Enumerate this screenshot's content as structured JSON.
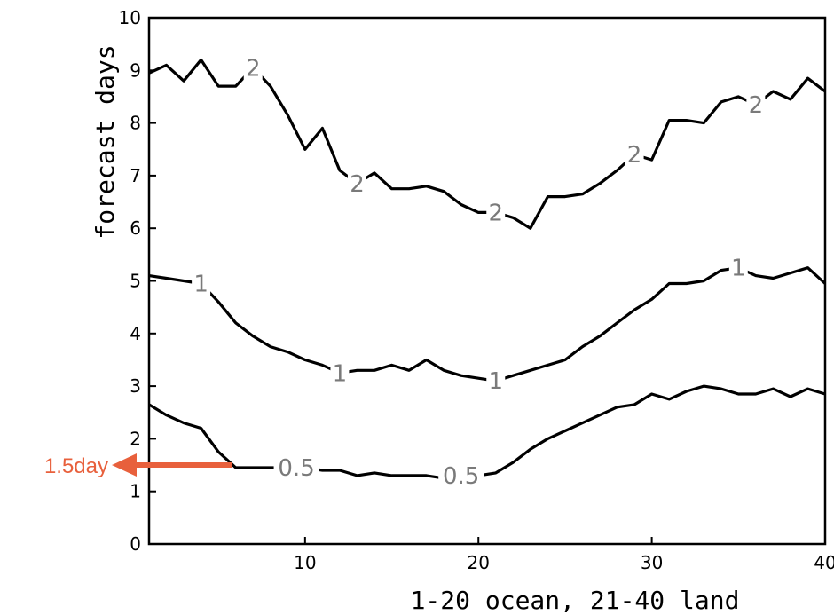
{
  "chart_data": {
    "type": "line",
    "xlabel": "1-20 ocean, 21-40 land",
    "ylabel": "forecast days",
    "xlim": [
      1,
      40
    ],
    "ylim": [
      0,
      10
    ],
    "x_ticks": [
      10,
      20,
      30,
      40
    ],
    "x_tick_labels": [
      "10",
      "20",
      "30",
      "40"
    ],
    "y_ticks": [
      0,
      1,
      2,
      3,
      4,
      5,
      6,
      7,
      8,
      9,
      10
    ],
    "y_tick_labels": [
      "0",
      "1",
      "2",
      "3",
      "4",
      "5",
      "6",
      "7",
      "8",
      "9",
      "10"
    ],
    "grid": false,
    "legend": "none",
    "series": [
      {
        "label": "2",
        "x": [
          1,
          2,
          3,
          4,
          5,
          6,
          7,
          8,
          9,
          10,
          11,
          12,
          13,
          14,
          15,
          16,
          17,
          18,
          19,
          20,
          21,
          22,
          23,
          24,
          25,
          26,
          27,
          28,
          29,
          30,
          31,
          32,
          33,
          34,
          35,
          36,
          37,
          38,
          39,
          40
        ],
        "y": [
          8.95,
          9.1,
          8.8,
          9.2,
          8.7,
          8.7,
          9.05,
          8.7,
          8.15,
          7.5,
          7.9,
          7.1,
          6.85,
          7.05,
          6.75,
          6.75,
          6.8,
          6.7,
          6.45,
          6.3,
          6.3,
          6.2,
          6.0,
          6.6,
          6.6,
          6.65,
          6.85,
          7.1,
          7.4,
          7.3,
          8.05,
          8.05,
          8.0,
          8.4,
          8.5,
          8.35,
          8.6,
          8.45,
          8.85,
          8.6
        ],
        "labels_at": [
          7,
          13,
          21,
          29,
          36
        ]
      },
      {
        "label": "1",
        "x": [
          1,
          2,
          3,
          4,
          5,
          6,
          7,
          8,
          9,
          10,
          11,
          12,
          13,
          14,
          15,
          16,
          17,
          18,
          19,
          20,
          21,
          22,
          23,
          24,
          25,
          26,
          27,
          28,
          29,
          30,
          31,
          32,
          33,
          34,
          35,
          36,
          37,
          38,
          39,
          40
        ],
        "y": [
          5.1,
          5.05,
          5.0,
          4.95,
          4.6,
          4.2,
          3.95,
          3.75,
          3.65,
          3.5,
          3.4,
          3.25,
          3.3,
          3.3,
          3.4,
          3.3,
          3.5,
          3.3,
          3.2,
          3.15,
          3.1,
          3.2,
          3.3,
          3.4,
          3.5,
          3.75,
          3.95,
          4.2,
          4.45,
          4.65,
          4.95,
          4.95,
          5.0,
          5.2,
          5.25,
          5.1,
          5.05,
          5.15,
          5.25,
          4.95
        ],
        "labels_at": [
          4,
          12,
          21,
          35
        ]
      },
      {
        "label": "0.5",
        "x": [
          1,
          2,
          3,
          4,
          5,
          6,
          7,
          8,
          9,
          10,
          11,
          12,
          13,
          14,
          15,
          16,
          17,
          18,
          19,
          20,
          21,
          22,
          23,
          24,
          25,
          26,
          27,
          28,
          29,
          30,
          31,
          32,
          33,
          34,
          35,
          36,
          37,
          38,
          39,
          40
        ],
        "y": [
          2.65,
          2.45,
          2.3,
          2.2,
          1.75,
          1.45,
          1.45,
          1.45,
          1.45,
          1.45,
          1.4,
          1.4,
          1.3,
          1.35,
          1.3,
          1.3,
          1.3,
          1.25,
          1.3,
          1.3,
          1.35,
          1.55,
          1.8,
          2.0,
          2.15,
          2.3,
          2.45,
          2.6,
          2.65,
          2.85,
          2.75,
          2.9,
          3.0,
          2.95,
          2.85,
          2.85,
          2.95,
          2.8,
          2.95,
          2.85
        ],
        "labels_at": [
          9.5,
          19
        ]
      }
    ],
    "annotation": {
      "text": "1.5day",
      "y": 1.5,
      "color": "#e8603c"
    }
  }
}
